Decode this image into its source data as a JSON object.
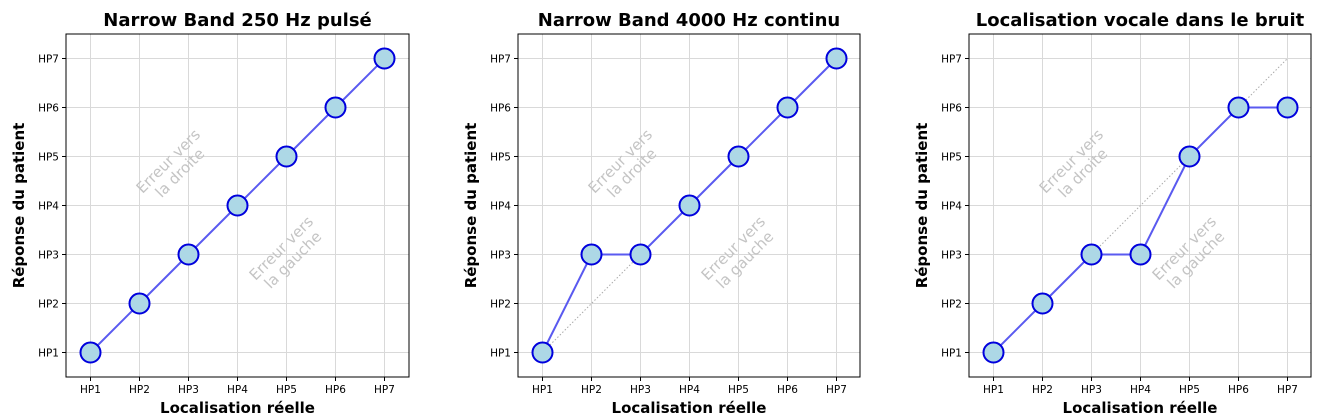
{
  "chart_data": [
    {
      "type": "line",
      "title": "Narrow Band 250 Hz pulsé",
      "xlabel": "Localisation réelle",
      "ylabel": "Réponse du patient",
      "categories": [
        "HP1",
        "HP2",
        "HP3",
        "HP4",
        "HP5",
        "HP6",
        "HP7"
      ],
      "x": [
        "HP1",
        "HP2",
        "HP3",
        "HP4",
        "HP5",
        "HP6",
        "HP7"
      ],
      "y": [
        "HP1",
        "HP2",
        "HP3",
        "HP4",
        "HP5",
        "HP6",
        "HP7"
      ],
      "show_diagonal": false,
      "annotations": [
        {
          "lines": [
            "Erreur vers",
            "la droite"
          ]
        },
        {
          "lines": [
            "Erreur vers",
            "la gauche"
          ]
        }
      ],
      "grid": true
    },
    {
      "type": "line",
      "title": "Narrow Band 4000 Hz continu",
      "xlabel": "Localisation réelle",
      "ylabel": "Réponse du patient",
      "categories": [
        "HP1",
        "HP2",
        "HP3",
        "HP4",
        "HP5",
        "HP6",
        "HP7"
      ],
      "x": [
        "HP1",
        "HP2",
        "HP3",
        "HP4",
        "HP5",
        "HP6",
        "HP7"
      ],
      "y": [
        "HP1",
        "HP3",
        "HP3",
        "HP4",
        "HP5",
        "HP6",
        "HP7"
      ],
      "show_diagonal": true,
      "annotations": [
        {
          "lines": [
            "Erreur vers",
            "la droite"
          ]
        },
        {
          "lines": [
            "Erreur vers",
            "la gauche"
          ]
        }
      ],
      "grid": true
    },
    {
      "type": "line",
      "title": "Localisation vocale dans le bruit",
      "xlabel": "Localisation réelle",
      "ylabel": "Réponse du patient",
      "categories": [
        "HP1",
        "HP2",
        "HP3",
        "HP4",
        "HP5",
        "HP6",
        "HP7"
      ],
      "x": [
        "HP1",
        "HP2",
        "HP3",
        "HP4",
        "HP5",
        "HP6",
        "HP7"
      ],
      "y": [
        "HP1",
        "HP2",
        "HP3",
        "HP3",
        "HP5",
        "HP6",
        "HP6"
      ],
      "show_diagonal": true,
      "annotations": [
        {
          "lines": [
            "Erreur vers",
            "la droite"
          ]
        },
        {
          "lines": [
            "Erreur vers",
            "la gauche"
          ]
        }
      ],
      "grid": true
    }
  ],
  "colors": {
    "line": "#5a5af0",
    "marker_fill": "#add8e6",
    "marker_edge": "#0000dd",
    "grid": "#d9d9d9",
    "diagonal": "#aaaaaa",
    "annotation": "#c4c4c4"
  }
}
